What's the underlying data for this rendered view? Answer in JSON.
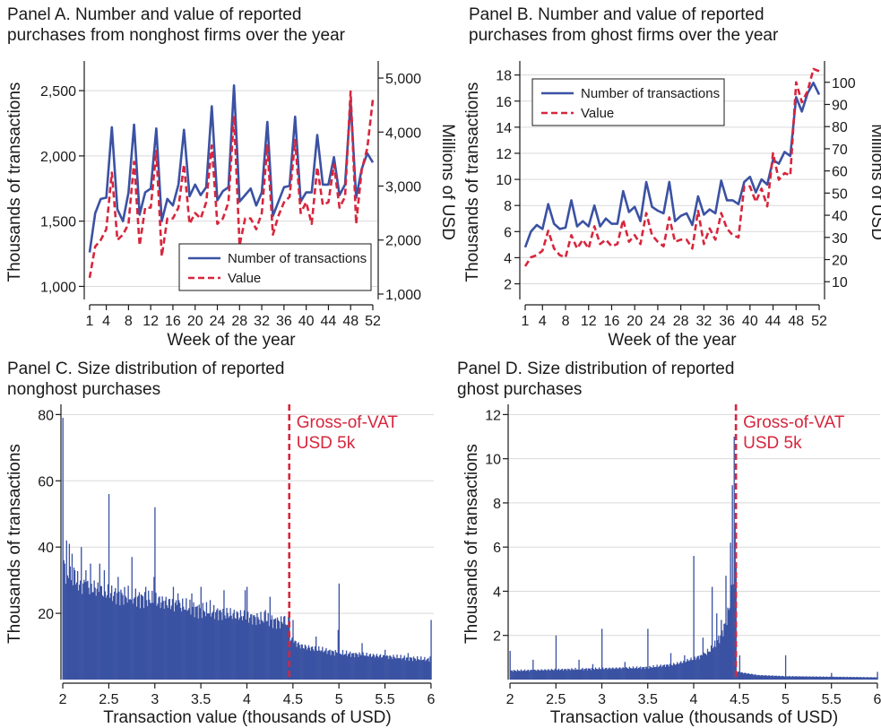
{
  "figure": {
    "colors": {
      "number": "#3b52a3",
      "value": "#d7263d",
      "bars": "#3b52a3",
      "threshold": "#d7263d"
    }
  },
  "chart_data": [
    {
      "id": "panelA",
      "type": "line",
      "title": [
        "Panel A. Number and value of reported",
        "purchases from nonghost firms over the year"
      ],
      "xlabel": "Week of the year",
      "ylabel": "Thousands of transactions",
      "ylabel_right": "Millions of USD",
      "xlim": [
        1,
        52
      ],
      "ylim": [
        900,
        2700
      ],
      "ylim_right": [
        900,
        5250
      ],
      "xticks": [
        1,
        4,
        8,
        12,
        16,
        20,
        24,
        28,
        32,
        36,
        40,
        44,
        48,
        52
      ],
      "yticks": [
        1000,
        1500,
        2000,
        2500
      ],
      "ytick_labels": [
        "1,000",
        "1,500",
        "2,000",
        "2,500"
      ],
      "yticks_right": [
        1000,
        2000,
        3000,
        4000,
        5000
      ],
      "ytick_labels_right": [
        "1,000",
        "2,000",
        "3,000",
        "4,000",
        "5,000"
      ],
      "grid": true,
      "legend": {
        "position": "bottom-right",
        "entries": [
          "Number of transactions",
          "Value"
        ]
      },
      "x": [
        1,
        2,
        3,
        4,
        5,
        6,
        7,
        8,
        9,
        10,
        11,
        12,
        13,
        14,
        15,
        16,
        17,
        18,
        19,
        20,
        21,
        22,
        23,
        24,
        25,
        26,
        27,
        28,
        29,
        30,
        31,
        32,
        33,
        34,
        35,
        36,
        37,
        38,
        39,
        40,
        41,
        42,
        43,
        44,
        45,
        46,
        47,
        48,
        49,
        50,
        51,
        52
      ],
      "series": [
        {
          "name": "Number of transactions",
          "axis": "left",
          "style": "solid",
          "values": [
            1260,
            1560,
            1670,
            1680,
            2220,
            1590,
            1500,
            1720,
            2240,
            1550,
            1720,
            1750,
            2210,
            1500,
            1670,
            1620,
            1780,
            2200,
            1690,
            1780,
            1700,
            1760,
            2380,
            1660,
            1730,
            1760,
            2540,
            1650,
            1700,
            1750,
            1620,
            1720,
            2260,
            1540,
            1650,
            1760,
            1770,
            2300,
            1650,
            1720,
            1720,
            2160,
            1780,
            1780,
            1990,
            1700,
            1780,
            2420,
            1680,
            1900,
            2020,
            1950
          ]
        },
        {
          "name": "Value",
          "axis": "right",
          "style": "dashed",
          "values": [
            1300,
            1880,
            2000,
            2200,
            3250,
            2000,
            2100,
            2300,
            3450,
            1900,
            2600,
            2600,
            3650,
            1700,
            2400,
            2400,
            2600,
            3400,
            2300,
            2500,
            2400,
            2700,
            3750,
            2300,
            2400,
            2700,
            4300,
            1900,
            2400,
            2400,
            2200,
            2500,
            3750,
            2100,
            2450,
            2700,
            2800,
            3850,
            2500,
            2700,
            2300,
            3350,
            2650,
            2700,
            3400,
            2600,
            2800,
            4750,
            2300,
            3300,
            3700,
            4600
          ]
        }
      ]
    },
    {
      "id": "panelB",
      "type": "line",
      "title": [
        "Panel B. Number and value of reported",
        "purchases from ghost firms over the year"
      ],
      "xlabel": "Week of the year",
      "ylabel": "Thousands of transactions",
      "ylabel_right": "Millions of USD",
      "xlim": [
        1,
        52
      ],
      "ylim": [
        0.8,
        18.8
      ],
      "ylim_right": [
        2,
        108
      ],
      "xticks": [
        1,
        4,
        8,
        12,
        16,
        20,
        24,
        28,
        32,
        36,
        40,
        44,
        48,
        52
      ],
      "yticks": [
        2,
        4,
        6,
        8,
        10,
        12,
        14,
        16,
        18
      ],
      "ytick_labels": [
        "2",
        "4",
        "6",
        "8",
        "10",
        "12",
        "14",
        "16",
        "18"
      ],
      "yticks_right": [
        10,
        20,
        30,
        40,
        50,
        60,
        70,
        80,
        90,
        100
      ],
      "ytick_labels_right": [
        "10",
        "20",
        "30",
        "40",
        "50",
        "60",
        "70",
        "80",
        "90",
        "100"
      ],
      "grid": true,
      "legend": {
        "position": "top-left",
        "entries": [
          "Number of transactions",
          "Value"
        ]
      },
      "x": [
        1,
        2,
        3,
        4,
        5,
        6,
        7,
        8,
        9,
        10,
        11,
        12,
        13,
        14,
        15,
        16,
        17,
        18,
        19,
        20,
        21,
        22,
        23,
        24,
        25,
        26,
        27,
        28,
        29,
        30,
        31,
        32,
        33,
        34,
        35,
        36,
        37,
        38,
        39,
        40,
        41,
        42,
        43,
        44,
        45,
        46,
        47,
        48,
        49,
        50,
        51,
        52
      ],
      "series": [
        {
          "name": "Number of transactions",
          "axis": "left",
          "style": "solid",
          "values": [
            4.8,
            6.0,
            6.5,
            6.2,
            8.1,
            6.6,
            6.2,
            6.3,
            8.4,
            6.4,
            6.8,
            6.4,
            8.0,
            6.4,
            7.0,
            6.6,
            6.6,
            9.1,
            7.5,
            7.9,
            6.8,
            9.8,
            7.9,
            7.6,
            7.4,
            9.8,
            6.8,
            7.2,
            7.4,
            6.5,
            8.7,
            7.3,
            7.7,
            7.4,
            9.9,
            8.4,
            8.4,
            8.1,
            9.8,
            10.2,
            9.0,
            10.0,
            9.6,
            11.5,
            11.2,
            12.1,
            11.8,
            16.3,
            15.2,
            16.6,
            17.4,
            16.5
          ]
        },
        {
          "name": "Value",
          "axis": "right",
          "style": "dashed",
          "values": [
            17,
            21,
            22,
            24,
            33,
            25,
            22,
            21,
            31,
            25,
            29,
            25,
            35,
            27,
            29,
            26,
            27,
            38,
            28,
            31,
            27,
            41,
            31,
            28,
            26,
            39,
            28,
            29,
            29,
            25,
            42,
            27,
            34,
            29,
            41,
            34,
            31,
            30,
            53,
            53,
            46,
            52,
            44,
            68,
            56,
            59,
            58,
            100,
            91,
            96,
            106,
            105
          ]
        }
      ]
    },
    {
      "id": "panelC",
      "type": "bar",
      "title": [
        "Panel C. Size distribution of reported",
        "nonghost purchases"
      ],
      "xlabel": "Transaction value (thousands of USD)",
      "ylabel": "Thousands of transactions",
      "xlim": [
        1.98,
        6.03
      ],
      "ylim": [
        0,
        82
      ],
      "xticks": [
        2,
        2.5,
        3,
        3.5,
        4,
        4.5,
        5,
        5.5,
        6
      ],
      "xtick_labels": [
        "2",
        "2.5",
        "3",
        "3.5",
        "4",
        "4.5",
        "5",
        "5.5",
        "6"
      ],
      "yticks": [
        20,
        40,
        60,
        80
      ],
      "ytick_labels": [
        "20",
        "40",
        "60",
        "80"
      ],
      "grid": true,
      "bin_start": 2.0,
      "bin_width": 0.01,
      "smooth_knots": [
        [
          2.0,
          36
        ],
        [
          2.05,
          31
        ],
        [
          2.2,
          29
        ],
        [
          2.5,
          26
        ],
        [
          3.0,
          24
        ],
        [
          3.5,
          21
        ],
        [
          4.0,
          19
        ],
        [
          4.45,
          17
        ],
        [
          4.47,
          12
        ],
        [
          4.6,
          10
        ],
        [
          5.0,
          8
        ],
        [
          5.5,
          7
        ],
        [
          6.0,
          6
        ]
      ],
      "spikes": [
        [
          2.0,
          79
        ],
        [
          2.04,
          42
        ],
        [
          2.07,
          41
        ],
        [
          2.1,
          38
        ],
        [
          2.13,
          33
        ],
        [
          2.2,
          40
        ],
        [
          2.25,
          33
        ],
        [
          2.3,
          35
        ],
        [
          2.4,
          35
        ],
        [
          2.45,
          33
        ],
        [
          2.5,
          56
        ],
        [
          2.6,
          31
        ],
        [
          2.75,
          37
        ],
        [
          2.9,
          28
        ],
        [
          2.99,
          31
        ],
        [
          3.0,
          52
        ],
        [
          3.2,
          28
        ],
        [
          3.25,
          26
        ],
        [
          3.4,
          26
        ],
        [
          3.5,
          28
        ],
        [
          3.6,
          24
        ],
        [
          3.75,
          27
        ],
        [
          3.98,
          27
        ],
        [
          4.0,
          28
        ],
        [
          4.2,
          21
        ],
        [
          4.25,
          25
        ],
        [
          4.4,
          19
        ],
        [
          4.46,
          20
        ],
        [
          4.5,
          18
        ],
        [
          4.75,
          13
        ],
        [
          4.99,
          15
        ],
        [
          5.0,
          29
        ],
        [
          5.25,
          11
        ],
        [
          5.5,
          9
        ],
        [
          5.75,
          8
        ],
        [
          5.99,
          7
        ],
        [
          6.0,
          18
        ]
      ],
      "threshold": {
        "x": 4.46,
        "label": [
          "Gross-of-VAT",
          "USD 5k"
        ]
      }
    },
    {
      "id": "panelD",
      "type": "bar",
      "title": [
        "Panel D. Size distribution of reported",
        "ghost purchases"
      ],
      "xlabel": "Transaction value (thousands of USD)",
      "ylabel": "Thousands of transactions",
      "xlim": [
        1.98,
        6.03
      ],
      "ylim": [
        0,
        12.3
      ],
      "xticks": [
        2,
        2.5,
        3,
        3.5,
        4,
        4.5,
        5,
        5.5,
        6
      ],
      "xtick_labels": [
        "2",
        "2.5",
        "3",
        "3.5",
        "4",
        "4.5",
        "5",
        "5.5",
        "6"
      ],
      "yticks": [
        2,
        4,
        6,
        8,
        10,
        12
      ],
      "ytick_labels": [
        "2",
        "4",
        "6",
        "8",
        "10",
        "12"
      ],
      "grid": true,
      "bin_start": 2.0,
      "bin_width": 0.01,
      "smooth_knots": [
        [
          2.0,
          0.4
        ],
        [
          2.5,
          0.45
        ],
        [
          3.0,
          0.5
        ],
        [
          3.5,
          0.55
        ],
        [
          3.8,
          0.7
        ],
        [
          4.0,
          0.95
        ],
        [
          4.1,
          1.1
        ],
        [
          4.2,
          1.4
        ],
        [
          4.3,
          2.0
        ],
        [
          4.35,
          2.6
        ],
        [
          4.4,
          3.5
        ],
        [
          4.43,
          4.5
        ],
        [
          4.45,
          5.8
        ],
        [
          4.46,
          5.6
        ],
        [
          4.47,
          0.35
        ],
        [
          4.7,
          0.2
        ],
        [
          5.0,
          0.15
        ],
        [
          6.0,
          0.1
        ]
      ],
      "spikes": [
        [
          2.0,
          1.3
        ],
        [
          2.25,
          0.9
        ],
        [
          2.5,
          2.0
        ],
        [
          2.75,
          0.9
        ],
        [
          2.9,
          0.7
        ],
        [
          3.0,
          2.3
        ],
        [
          3.25,
          0.8
        ],
        [
          3.5,
          2.3
        ],
        [
          3.75,
          1.2
        ],
        [
          3.9,
          1.1
        ],
        [
          4.0,
          5.6
        ],
        [
          4.1,
          1.9
        ],
        [
          4.2,
          4.2
        ],
        [
          4.25,
          3.0
        ],
        [
          4.3,
          2.7
        ],
        [
          4.35,
          4.7
        ],
        [
          4.4,
          6.2
        ],
        [
          4.42,
          8.8
        ],
        [
          4.44,
          11.0
        ],
        [
          4.45,
          6.9
        ],
        [
          4.5,
          1.1
        ],
        [
          5.0,
          1.1
        ],
        [
          5.5,
          0.3
        ],
        [
          6.0,
          0.35
        ]
      ],
      "threshold": {
        "x": 4.46,
        "label": [
          "Gross-of-VAT",
          "USD 5k"
        ]
      }
    }
  ]
}
